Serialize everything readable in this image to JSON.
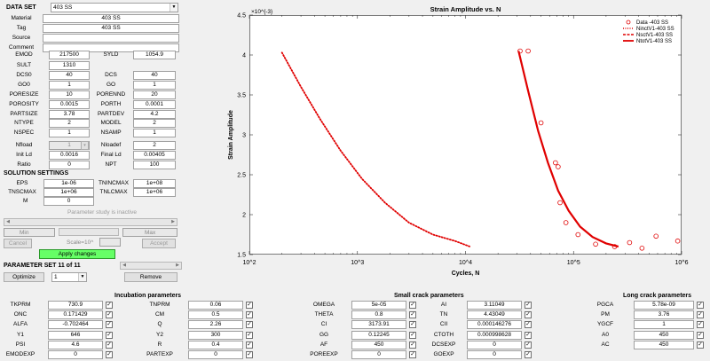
{
  "dataset": {
    "label": "DATA SET",
    "selected": "403 SS"
  },
  "left_fields": [
    {
      "key": "material",
      "label": "Material",
      "value": "403 SS"
    },
    {
      "key": "tag",
      "label": "Tag",
      "value": "403 SS"
    },
    {
      "key": "source",
      "label": "Source",
      "value": ""
    },
    {
      "key": "comment",
      "label": "Comment",
      "value": ""
    }
  ],
  "pairs": [
    {
      "l1": "EMOD",
      "v1": "217500",
      "l2": "SYLD",
      "v2": "1054.9"
    },
    {
      "l1": "SULT",
      "v1": "1310",
      "l2": "",
      "v2": ""
    },
    {
      "l1": "DCS0",
      "v1": "40",
      "l2": "DCS",
      "v2": "40"
    },
    {
      "l1": "GO0",
      "v1": "1",
      "l2": "GO",
      "v2": "1"
    },
    {
      "l1": "PORESIZE",
      "v1": "10",
      "l2": "PORENND",
      "v2": "20"
    },
    {
      "l1": "POROSITY",
      "v1": "0.0015",
      "l2": "PORTH",
      "v2": "0.0001"
    },
    {
      "l1": "PARTSIZE",
      "v1": "3.78",
      "l2": "PARTDEV",
      "v2": "4.2"
    },
    {
      "l1": "NTYPE",
      "v1": "2",
      "l2": "MODEL",
      "v2": "2"
    },
    {
      "l1": "NSPEC",
      "v1": "1",
      "l2": "NSAMP",
      "v2": "1"
    },
    {
      "l1": "Nfload",
      "v1": "1",
      "l2": "Nloadef",
      "v2": "2"
    },
    {
      "l1": "Init Ld",
      "v1": "0.0016",
      "l2": "Final Ld",
      "v2": "0.00405"
    },
    {
      "l1": "Ratio",
      "v1": "0",
      "l2": "NPT",
      "v2": "100"
    }
  ],
  "solution": {
    "title": "SOLUTION SETTINGS",
    "rows": [
      {
        "l1": "EPS",
        "v1": "1e-06",
        "l2": "TNINCMAX",
        "v2": "1e+08"
      },
      {
        "l1": "TNSCMAX",
        "v1": "1e+06",
        "l2": "TNLCMAX",
        "v2": "1e+06"
      }
    ],
    "m_label": "M",
    "m_value": "0"
  },
  "param_study": {
    "inactive": "Parameter study is inactive",
    "min": "Min",
    "max": "Max",
    "cancel": "Cancel",
    "scale": "Scale=10^",
    "accept": "Accept",
    "apply": "Apply changes"
  },
  "param_set": {
    "label": "PARAMETER SET 11 of 11",
    "optimize": "Optimize",
    "select_value": "1",
    "remove": "Remove"
  },
  "chart_data": {
    "type": "scatter",
    "title": "Strain Amplitude vs. N",
    "xlabel": "Cycles, N",
    "ylabel": "Strain Amplitude",
    "xscale": "log",
    "xlim": [
      100,
      1000000
    ],
    "ylim": [
      1.5,
      4.5
    ],
    "y_multiplier": "×10^{-3}",
    "x_ticks": [
      {
        "v": 100,
        "label": "10^2"
      },
      {
        "v": 1000,
        "label": "10^3"
      },
      {
        "v": 10000,
        "label": "10^4"
      },
      {
        "v": 100000,
        "label": "10^5"
      },
      {
        "v": 1000000,
        "label": "10^6"
      }
    ],
    "y_ticks": [
      1.5,
      2,
      2.5,
      3,
      3.5,
      4,
      4.5
    ],
    "legend": [
      "Data -403 SS",
      "NinctV1-403 SS",
      "NsctV1-403 SS",
      "NtotV1-403 SS"
    ],
    "legend_position": "top-right",
    "data_points": [
      {
        "x": 32000,
        "y": 4.05
      },
      {
        "x": 38000,
        "y": 4.05
      },
      {
        "x": 50000,
        "y": 3.15
      },
      {
        "x": 68000,
        "y": 2.65
      },
      {
        "x": 72000,
        "y": 2.6
      },
      {
        "x": 75000,
        "y": 2.15
      },
      {
        "x": 85000,
        "y": 1.9
      },
      {
        "x": 110000,
        "y": 1.75
      },
      {
        "x": 160000,
        "y": 1.63
      },
      {
        "x": 240000,
        "y": 1.6
      },
      {
        "x": 330000,
        "y": 1.65
      },
      {
        "x": 430000,
        "y": 1.58
      },
      {
        "x": 580000,
        "y": 1.73
      },
      {
        "x": 920000,
        "y": 1.67
      }
    ],
    "series": [
      {
        "name": "NinctV1-403 SS",
        "style": "dotted",
        "x": [
          200,
          300,
          450,
          700,
          1100,
          1800,
          3000,
          5000,
          8000,
          11000
        ],
        "y": [
          4.03,
          3.6,
          3.2,
          2.8,
          2.45,
          2.15,
          1.9,
          1.75,
          1.67,
          1.6
        ]
      },
      {
        "name": "NtotV1-403 SS",
        "style": "solid",
        "x": [
          31000,
          38000,
          47000,
          58000,
          72000,
          90000,
          115000,
          150000,
          200000,
          260000
        ],
        "y": [
          4.05,
          3.55,
          3.05,
          2.65,
          2.3,
          2.05,
          1.85,
          1.72,
          1.64,
          1.6
        ]
      }
    ]
  },
  "incubation": {
    "title": "Incubation parameters",
    "rows": [
      {
        "l1": "TKPRM",
        "v1": "730.9",
        "l2": "TNPRM",
        "v2": "0.06"
      },
      {
        "l1": "ONC",
        "v1": "0.171429",
        "l2": "CM",
        "v2": "0.5"
      },
      {
        "l1": "ALFA",
        "v1": "-0.702464",
        "l2": "Q",
        "v2": "2.26"
      },
      {
        "l1": "Y1",
        "v1": "646",
        "l2": "Y2",
        "v2": "300"
      },
      {
        "l1": "PSI",
        "v1": "4.6",
        "l2": "R",
        "v2": "0.4"
      },
      {
        "l1": "EMODEXP",
        "v1": "0",
        "l2": "PARTEXP",
        "v2": "0"
      }
    ]
  },
  "small_crack": {
    "title": "Small crack parameters",
    "rows": [
      {
        "l1": "OMEGA",
        "v1": "5e-05",
        "l2": "AI",
        "v2": "3.11049"
      },
      {
        "l1": "THETA",
        "v1": "0.8",
        "l2": "TN",
        "v2": "4.43049"
      },
      {
        "l1": "CI",
        "v1": "3173.91",
        "l2": "CII",
        "v2": "0.000146276"
      },
      {
        "l1": "GG",
        "v1": "0.12245",
        "l2": "CTOTH",
        "v2": "0.000998628"
      },
      {
        "l1": "AF",
        "v1": "450",
        "l2": "DCSEXP",
        "v2": "0"
      },
      {
        "l1": "POREEXP",
        "v1": "0",
        "l2": "GOEXP",
        "v2": "0"
      }
    ]
  },
  "long_crack": {
    "title": "Long crack parameters",
    "rows": [
      {
        "l1": "PGCA",
        "v1": "5.78e-09"
      },
      {
        "l1": "PM",
        "v1": "3.76"
      },
      {
        "l1": "YGCF",
        "v1": "1"
      },
      {
        "l1": "A0",
        "v1": "450"
      },
      {
        "l1": "AC",
        "v1": "450"
      }
    ]
  },
  "colors": {
    "accent_green": "#66ff66",
    "series_red": "#e00000"
  }
}
